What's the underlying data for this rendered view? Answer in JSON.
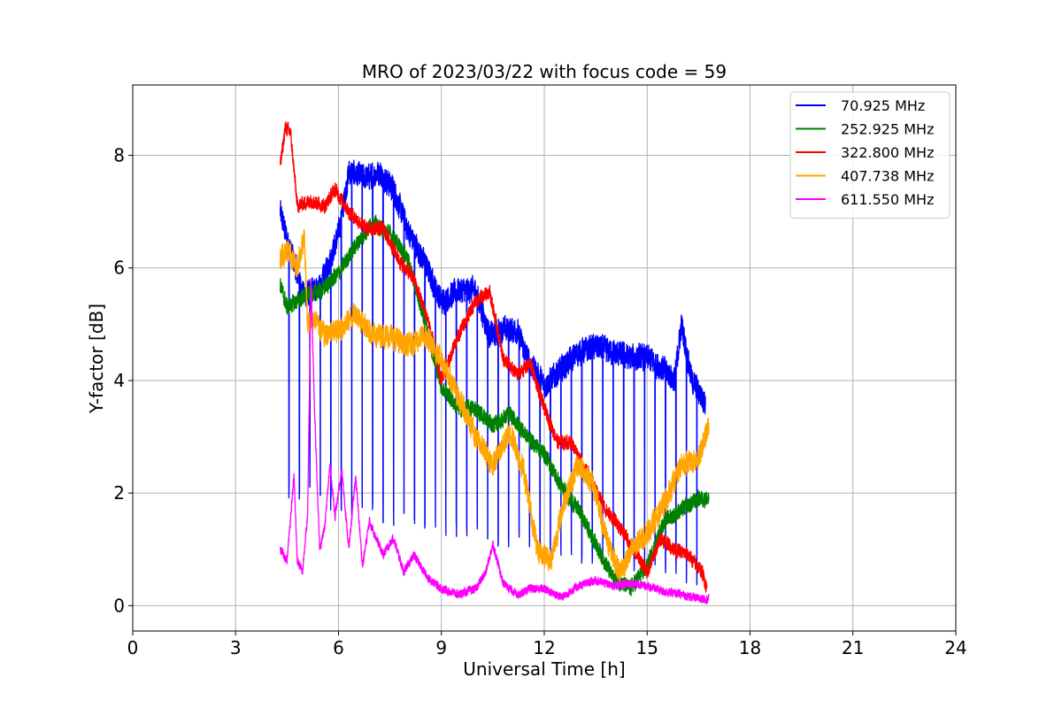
{
  "chart_data": {
    "type": "line",
    "title": "MRO of 2023/03/22 with focus code = 59",
    "xlabel": "Universal Time [h]",
    "ylabel": "Y-factor [dB]",
    "xlim": [
      0,
      24
    ],
    "ylim": [
      -0.45,
      9.25
    ],
    "x_ticks": [
      0,
      3,
      6,
      9,
      12,
      15,
      18,
      21,
      24
    ],
    "y_ticks": [
      0,
      2,
      4,
      6,
      8
    ],
    "grid": true,
    "legend_position": "top-right",
    "series": [
      {
        "name": " 70.925 MHz",
        "color": "#0000ff",
        "noise": 0.22,
        "dips": {
          "start": 4.55,
          "period": 0.305,
          "min": 1.8,
          "max_t": 16.6
        },
        "x": [
          4.3,
          4.5,
          5.0,
          5.5,
          6.0,
          6.3,
          6.8,
          7.2,
          7.6,
          8.0,
          8.5,
          9.0,
          9.5,
          10.0,
          10.4,
          10.8,
          11.2,
          11.5,
          12.0,
          12.5,
          13.0,
          13.5,
          14.0,
          14.5,
          15.0,
          15.5,
          15.8,
          16.0,
          16.3,
          16.7
        ],
        "y": [
          7.0,
          6.5,
          5.5,
          5.7,
          6.6,
          7.7,
          7.6,
          7.7,
          7.4,
          6.7,
          6.1,
          5.4,
          5.6,
          5.6,
          4.8,
          4.9,
          4.9,
          4.4,
          3.9,
          4.2,
          4.5,
          4.6,
          4.5,
          4.4,
          4.4,
          4.2,
          4.0,
          5.0,
          4.0,
          3.6
        ]
      },
      {
        "name": "252.925 MHz",
        "color": "#008000",
        "noise": 0.14,
        "x": [
          4.3,
          4.5,
          5.0,
          5.5,
          6.0,
          6.5,
          7.0,
          7.5,
          8.0,
          8.5,
          9.0,
          9.5,
          10.0,
          10.5,
          11.0,
          11.5,
          12.0,
          12.5,
          13.0,
          13.5,
          14.0,
          14.5,
          15.0,
          15.5,
          16.0,
          16.5,
          16.8
        ],
        "y": [
          5.7,
          5.3,
          5.5,
          5.6,
          5.9,
          6.4,
          6.8,
          6.6,
          6.2,
          5.1,
          3.9,
          3.5,
          3.5,
          3.2,
          3.4,
          3.0,
          2.7,
          2.1,
          1.7,
          1.1,
          0.5,
          0.3,
          0.7,
          1.5,
          1.7,
          1.9,
          1.9
        ]
      },
      {
        "name": "322.800 MHz",
        "color": "#ff0000",
        "noise": 0.12,
        "x": [
          4.3,
          4.45,
          4.6,
          4.8,
          5.2,
          5.6,
          5.9,
          6.3,
          6.8,
          7.3,
          7.8,
          8.2,
          8.6,
          9.0,
          9.5,
          10.0,
          10.4,
          10.8,
          11.2,
          11.6,
          12.0,
          12.4,
          12.8,
          13.3,
          13.8,
          14.2,
          14.6,
          15.0,
          15.4,
          15.8,
          16.2,
          16.6,
          16.75
        ],
        "y": [
          7.8,
          8.5,
          8.4,
          7.1,
          7.2,
          7.1,
          7.4,
          7.0,
          6.7,
          6.7,
          6.1,
          5.8,
          5.1,
          4.0,
          4.8,
          5.4,
          5.6,
          4.4,
          4.1,
          4.3,
          3.5,
          2.9,
          2.9,
          2.3,
          1.7,
          1.4,
          1.0,
          0.6,
          1.2,
          1.0,
          0.9,
          0.6,
          0.3
        ]
      },
      {
        "name": "407.738 MHz",
        "color": "#ffa500",
        "noise": 0.2,
        "x": [
          4.3,
          4.5,
          4.8,
          5.0,
          5.1,
          5.3,
          5.6,
          6.0,
          6.5,
          7.0,
          7.5,
          8.0,
          8.5,
          9.0,
          9.5,
          10.0,
          10.5,
          11.0,
          11.4,
          11.8,
          12.2,
          12.6,
          13.0,
          13.4,
          13.8,
          14.2,
          14.6,
          15.0,
          15.5,
          16.0,
          16.5,
          16.8
        ],
        "y": [
          6.2,
          6.3,
          6.0,
          6.6,
          5.0,
          5.1,
          4.8,
          4.9,
          5.2,
          4.8,
          4.8,
          4.6,
          4.8,
          4.4,
          3.7,
          3.0,
          2.5,
          3.1,
          2.4,
          1.0,
          0.8,
          1.9,
          2.5,
          2.2,
          1.2,
          0.6,
          1.0,
          1.3,
          1.8,
          2.5,
          2.6,
          3.2
        ]
      },
      {
        "name": "611.550 MHz",
        "color": "#ff00ff",
        "noise": 0.07,
        "x": [
          4.3,
          4.5,
          4.7,
          4.8,
          4.95,
          5.1,
          5.2,
          5.3,
          5.45,
          5.6,
          5.75,
          5.9,
          6.1,
          6.3,
          6.5,
          6.7,
          6.9,
          7.1,
          7.3,
          7.6,
          7.9,
          8.2,
          8.6,
          9.0,
          9.5,
          10.0,
          10.3,
          10.5,
          10.8,
          11.2,
          11.6,
          12.0,
          12.5,
          13.0,
          13.5,
          14.0,
          14.5,
          15.0,
          15.5,
          16.0,
          16.5,
          16.8
        ],
        "y": [
          1.0,
          0.8,
          2.3,
          0.8,
          0.6,
          1.6,
          5.8,
          3.5,
          1.0,
          1.4,
          2.5,
          1.6,
          2.4,
          1.0,
          2.3,
          0.7,
          1.5,
          1.2,
          0.9,
          1.2,
          0.6,
          0.9,
          0.5,
          0.3,
          0.2,
          0.3,
          0.6,
          1.1,
          0.4,
          0.2,
          0.3,
          0.3,
          0.15,
          0.35,
          0.45,
          0.35,
          0.4,
          0.35,
          0.25,
          0.2,
          0.12,
          0.12
        ]
      }
    ]
  }
}
